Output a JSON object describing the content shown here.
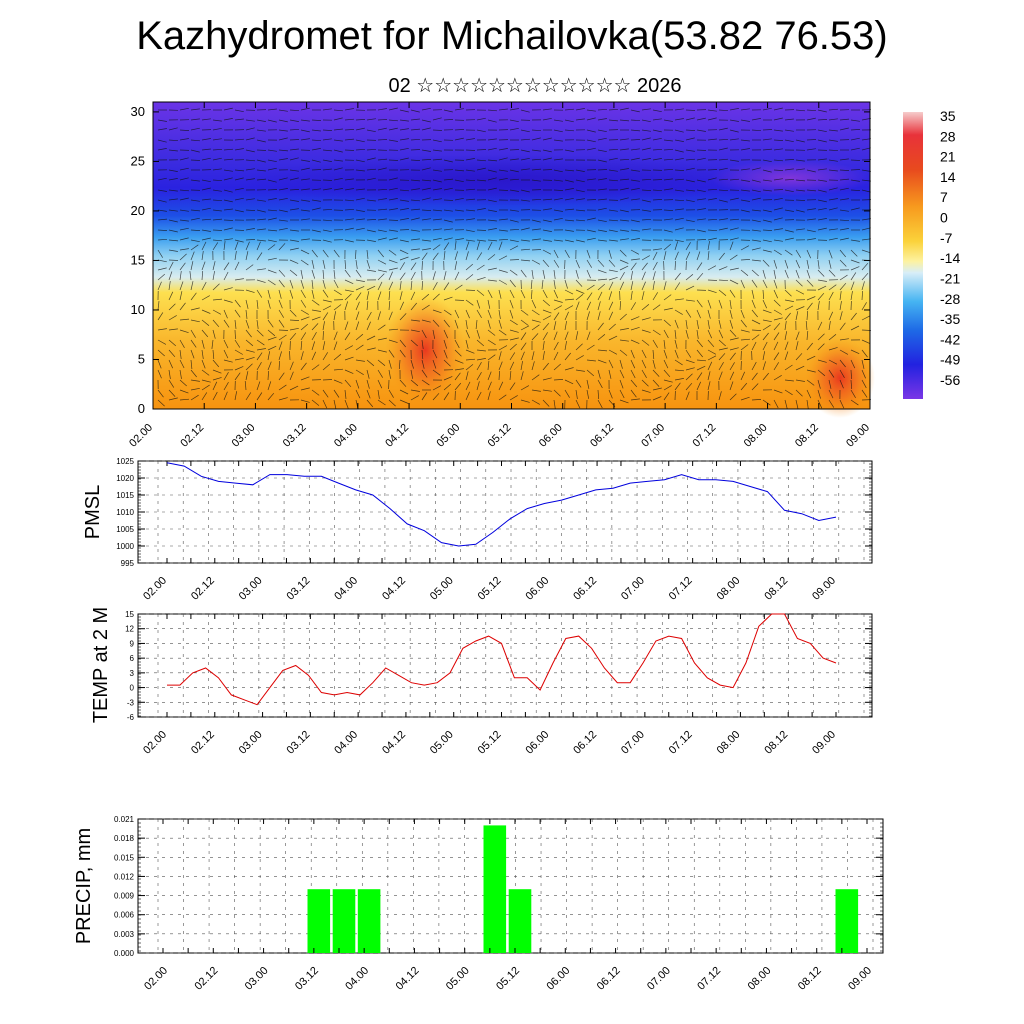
{
  "title": "Kazhydromet for Michailovka(53.82 76.53)",
  "subtitle": "02 ☆☆☆☆☆☆☆☆☆☆☆☆ 2026",
  "time_labels": [
    "02.00",
    "02.12",
    "03.00",
    "03.12",
    "04.00",
    "04.12",
    "05.00",
    "05.12",
    "06.00",
    "06.12",
    "07.00",
    "07.12",
    "08.00",
    "08.12",
    "09.00"
  ],
  "colors": {
    "pmsl_line": "#0000dd",
    "temp_line": "#dd0000",
    "precip_bar": "#00ff00"
  },
  "chart_data": [
    {
      "type": "heatmap",
      "title": "",
      "description_key": "vertical cross-section of temperature with wind barbs",
      "y_ticks": [
        0,
        5,
        10,
        15,
        20,
        25,
        30
      ],
      "ylim": [
        0,
        31
      ],
      "x_ticks": [
        "02.00",
        "02.12",
        "03.00",
        "03.12",
        "04.00",
        "04.12",
        "05.00",
        "05.12",
        "06.00",
        "06.12",
        "07.00",
        "07.12",
        "08.00",
        "08.12",
        "09.00"
      ],
      "colorbar_labels": [
        "35",
        "28",
        "21",
        "14",
        "7",
        "0",
        "-7",
        "-14",
        "-21",
        "-28",
        "-35",
        "-42",
        "-49",
        "-56"
      ]
    },
    {
      "type": "line",
      "ylabel": "PMSL",
      "ylim": [
        995,
        1025
      ],
      "y_ticks": [
        995,
        1000,
        1005,
        1010,
        1015,
        1020,
        1025
      ],
      "x_ticks": [
        "02.00",
        "02.12",
        "03.00",
        "03.12",
        "04.00",
        "04.12",
        "05.00",
        "05.12",
        "06.00",
        "06.12",
        "07.00",
        "07.12",
        "08.00",
        "08.12",
        "09.00"
      ],
      "values": [
        1024.5,
        1023.5,
        1020.5,
        1019,
        1018.5,
        1018,
        1021,
        1021,
        1020.5,
        1020.5,
        1018.5,
        1016.5,
        1015,
        1011,
        1006.5,
        1004.5,
        1001,
        1000,
        1000.5,
        1004,
        1008,
        1011,
        1012.5,
        1013.5,
        1015,
        1016.5,
        1017,
        1018.5,
        1019,
        1019.5,
        1021,
        1019.5,
        1019.5,
        1019,
        1017.5,
        1016,
        1010.5,
        1009.5,
        1007.5,
        1008.5
      ]
    },
    {
      "type": "line",
      "ylabel": "TEMP at 2 M",
      "ylim": [
        -6,
        15
      ],
      "y_ticks": [
        -6,
        -3,
        0,
        3,
        6,
        9,
        12,
        15
      ],
      "x_ticks": [
        "02.00",
        "02.12",
        "03.00",
        "03.12",
        "04.00",
        "04.12",
        "05.00",
        "05.12",
        "06.00",
        "06.12",
        "07.00",
        "07.12",
        "08.00",
        "08.12",
        "09.00"
      ],
      "values": [
        0.5,
        0.5,
        3,
        4,
        2,
        -1.5,
        -2.5,
        -3.5,
        0,
        3.5,
        4.5,
        2.5,
        -1,
        -1.5,
        -1,
        -1.5,
        1,
        4,
        2.5,
        1,
        0.5,
        1,
        3,
        8,
        9.5,
        10.5,
        9,
        2,
        2,
        -0.5,
        5,
        10,
        10.5,
        8,
        4,
        1,
        1,
        5,
        9.5,
        10.5,
        10,
        5,
        2,
        0.5,
        0,
        5,
        12.5,
        15,
        15,
        10,
        9,
        6,
        5
      ]
    },
    {
      "type": "bar",
      "ylabel": "PRECIP, mm",
      "ylim": [
        0,
        0.021
      ],
      "y_ticks": [
        "0.000",
        "0.003",
        "0.006",
        "0.009",
        "0.012",
        "0.015",
        "0.018",
        "0.021"
      ],
      "x_ticks": [
        "02.00",
        "02.12",
        "03.00",
        "03.12",
        "04.00",
        "04.12",
        "05.00",
        "05.12",
        "06.00",
        "06.12",
        "07.00",
        "07.12",
        "08.00",
        "08.12",
        "09.00"
      ],
      "bars": [
        {
          "x": "03.12",
          "value": 0.01
        },
        {
          "x": "03.18",
          "value": 0.01
        },
        {
          "x": "04.00",
          "value": 0.01
        },
        {
          "x": "05.06",
          "value": 0.02
        },
        {
          "x": "05.12",
          "value": 0.01
        },
        {
          "x": "08.18",
          "value": 0.01
        }
      ]
    }
  ]
}
